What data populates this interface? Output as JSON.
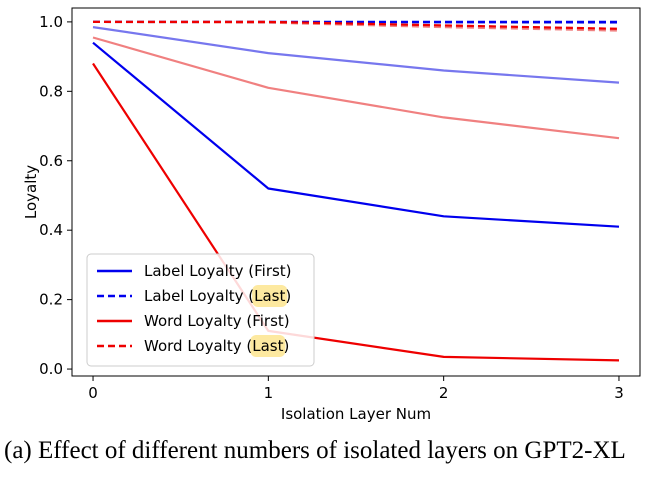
{
  "caption": "(a) Effect of different numbers of isolated layers on GPT2-XL",
  "chart_data": {
    "type": "line",
    "xlabel": "Isolation Layer Num",
    "ylabel": "Loyalty",
    "x": [
      0,
      1,
      2,
      3
    ],
    "xlim": [
      -0.12,
      3.12
    ],
    "ylim": [
      -0.02,
      1.04
    ],
    "xticks": [
      "0",
      "1",
      "2",
      "3"
    ],
    "yticks": [
      "0.0",
      "0.2",
      "0.4",
      "0.6",
      "0.8",
      "1.0"
    ],
    "legend_position": "lower-left",
    "series": [
      {
        "name": "Label Loyalty (First)",
        "color": "#0000ee",
        "dash": "solid",
        "values": [
          0.94,
          0.52,
          0.44,
          0.41
        ]
      },
      {
        "name": "Label Loyalty (Last)",
        "color": "#0000ee",
        "dash": "dashed",
        "values": [
          1.0,
          1.0,
          1.0,
          1.0
        ]
      },
      {
        "name": "Word Loyalty (First)",
        "color": "#ee0000",
        "dash": "solid",
        "values": [
          0.88,
          0.11,
          0.035,
          0.025
        ]
      },
      {
        "name": "Word Loyalty (Last)",
        "color": "#ee0000",
        "dash": "dashed",
        "values": [
          1.0,
          1.0,
          0.99,
          0.98
        ]
      },
      {
        "name": "",
        "color": "#7777ee",
        "dash": "solid",
        "values": [
          0.985,
          0.91,
          0.86,
          0.825
        ]
      },
      {
        "name": "",
        "color": "#7777ee",
        "dash": "dashed",
        "values": [
          1.0,
          0.998,
          0.998,
          0.997
        ]
      },
      {
        "name": "",
        "color": "#f08080",
        "dash": "solid",
        "values": [
          0.955,
          0.81,
          0.725,
          0.665
        ]
      },
      {
        "name": "",
        "color": "#f08080",
        "dash": "dashed",
        "values": [
          1.0,
          0.998,
          0.985,
          0.975
        ]
      }
    ],
    "highlight": {
      "word": "Last",
      "color": "#fde9a0"
    }
  }
}
